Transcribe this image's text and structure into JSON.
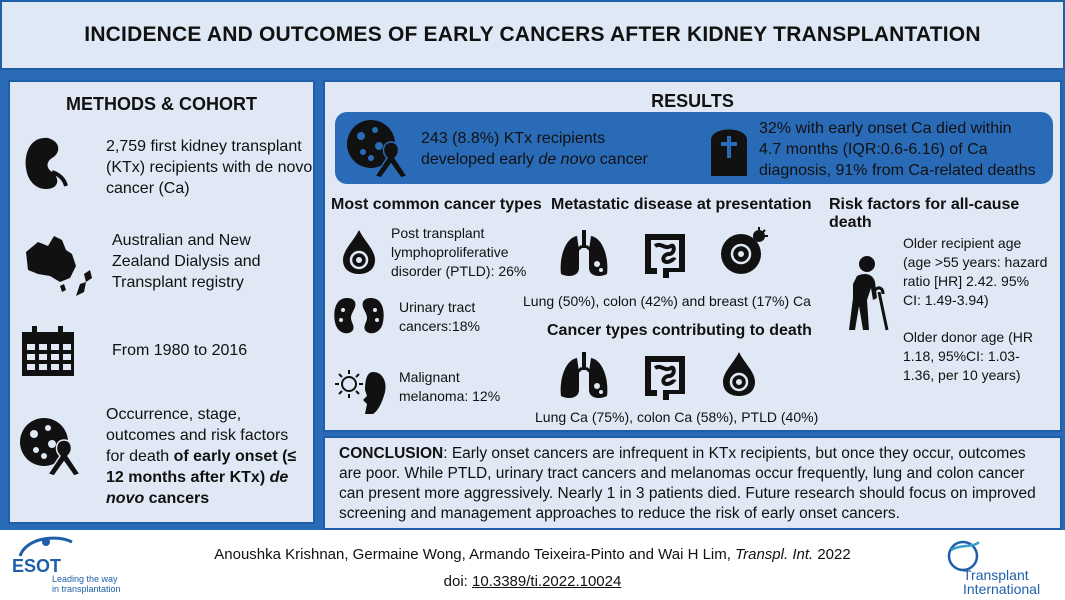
{
  "title": "INCIDENCE AND OUTCOMES OF EARLY CANCERS AFTER KIDNEY TRANSPLANTATION",
  "methods": {
    "heading": "METHODS & COHORT",
    "items": [
      {
        "icon": "kidney-icon",
        "lines": [
          "2,759 first kidney transplant",
          "(KTx) recipients with de novo",
          "cancer (Ca)"
        ]
      },
      {
        "icon": "australia-nz-map-icon",
        "lines": [
          "Australian and New",
          "Zealand Dialysis and",
          "Transplant registry"
        ]
      },
      {
        "icon": "calendar-icon",
        "lines": [
          "From 1980 to 2016"
        ]
      },
      {
        "icon": "cancer-cell-ribbon-icon",
        "lines": [
          "Occurrence, stage,",
          "outcomes and risk factors",
          "for death "
        ],
        "bold_part": "of early onset (≤ 12 months after KTx) ",
        "italic_part": "de novo",
        "end_part": " cancers"
      }
    ]
  },
  "results": {
    "heading": "RESULTS",
    "banner_left": {
      "line1": "243 (8.8%) KTx recipients",
      "line2_pre": "developed early ",
      "line2_italic": "de novo",
      "line2_post": " cancer"
    },
    "banner_right": {
      "lines": [
        "32% with early onset Ca died within",
        "4.7 months (IQR:0.6-6.16) of Ca",
        "diagnosis, 91% from Ca-related deaths"
      ]
    },
    "col1": {
      "heading": "Most common cancer types",
      "items": [
        {
          "icon": "blood-drop-icon",
          "lines": [
            "Post transplant",
            "lymphoproliferative",
            "disorder (PTLD): 26%"
          ]
        },
        {
          "icon": "kidneys-icon",
          "lines": [
            "Urinary tract",
            "cancers:18%"
          ]
        },
        {
          "icon": "sun-face-icon",
          "lines": [
            "Malignant",
            "melanoma: 12%"
          ]
        }
      ]
    },
    "col2": {
      "heading": "Metastatic disease at presentation",
      "caption": "Lung (50%), colon (42%) and breast (17%) Ca",
      "heading2": "Cancer types contributing to death",
      "caption2": "Lung Ca (75%), colon Ca (58%), PTLD (40%)"
    },
    "col3": {
      "heading": "Risk factors for all-cause death",
      "text1": [
        "Older recipient age",
        "(age >55 years: hazard",
        "ratio [HR] 2.42. 95%",
        "CI: 1.49-3.94)"
      ],
      "text2": [
        "Older donor age (HR",
        "1.18, 95%CI: 1.03-",
        "1.36, per 10 years)"
      ]
    }
  },
  "conclusion": {
    "label": "CONCLUSION",
    "text": ": Early onset cancers are infrequent in KTx recipients, but once they occur, outcomes are poor. While PTLD, urinary tract cancers and melanomas occur frequently, lung and colon cancer can present more aggressively. Nearly 1 in 3 patients died. Future research should focus on improved screening and management approaches to reduce the risk of early onset cancers."
  },
  "footer": {
    "citation_pre": "Anoushka Krishnan, Germaine Wong, Armando Teixeira-Pinto and Wai H Lim, ",
    "citation_italic": "Transpl. Int.",
    "citation_post": " 2022",
    "doi_label": "doi: ",
    "doi_value": "10.3389/ti.2022.10024",
    "esot_name": "ESOT",
    "esot_tag": [
      "Leading the way",
      "in transplantation"
    ],
    "journal": [
      "Transplant",
      "International"
    ]
  },
  "colors": {
    "brand_blue": "#2a6bb8",
    "panel_bg": "#dfe8f4",
    "border": "#1f5fa8"
  }
}
